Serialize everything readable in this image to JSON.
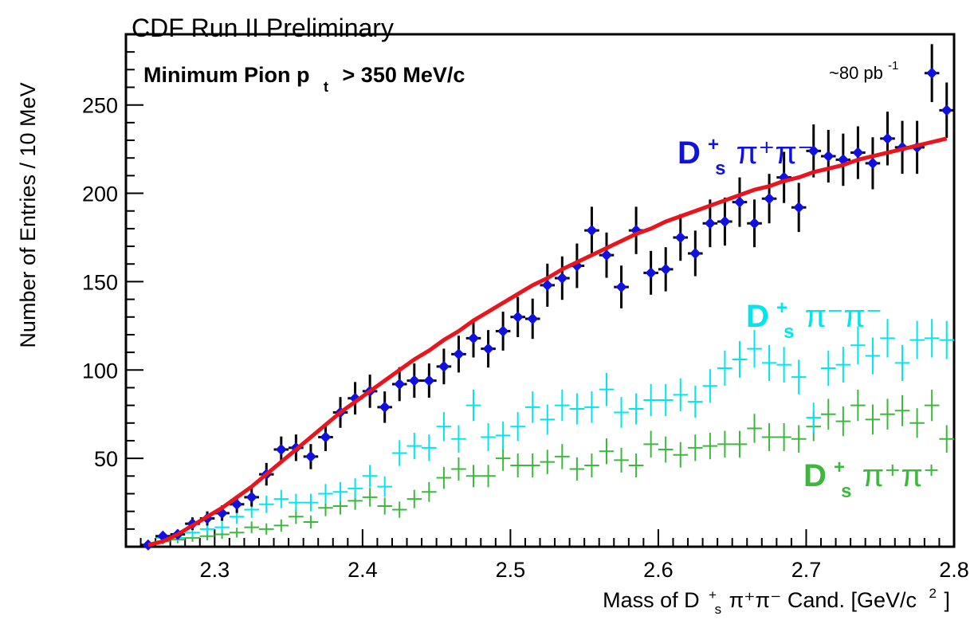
{
  "header": {
    "title": "CDF Run II Preliminary"
  },
  "chart_data": {
    "type": "scatter",
    "title": "Minimum Pion p",
    "title_sub": "t",
    "title_tail": "> 350 MeV/c",
    "lumi_main": "~80 pb",
    "lumi_sup": "-1",
    "ylabel": "Number of Entries / 10 MeV",
    "xlabel": {
      "part1": "Mass of D",
      "sub_s": "s",
      "sup_plus": "+",
      "part2": "π⁺π⁻ Cand. [GeV/c",
      "sup2": "2",
      "close": "]"
    },
    "xlim": [
      2.24,
      2.8
    ],
    "ylim": [
      0,
      290
    ],
    "xticks": [
      {
        "value": 2.3,
        "label": "2.3"
      },
      {
        "value": 2.4,
        "label": "2.4"
      },
      {
        "value": 2.5,
        "label": "2.5"
      },
      {
        "value": 2.6,
        "label": "2.6"
      },
      {
        "value": 2.7,
        "label": "2.7"
      },
      {
        "value": 2.8,
        "label": "2.8"
      }
    ],
    "yticks": [
      {
        "value": 50,
        "label": "50"
      },
      {
        "value": 100,
        "label": "100"
      },
      {
        "value": 150,
        "label": "150"
      },
      {
        "value": 200,
        "label": "200"
      },
      {
        "value": 250,
        "label": "250"
      }
    ],
    "bin_half_width": 0.005,
    "series": [
      {
        "label_main": "D",
        "label_sub": "s",
        "label_sup": "+",
        "label_tail": "π⁺π⁻",
        "color": "#1010e0",
        "marker": "diamond",
        "error_color": "#000000",
        "x": [
          2.255,
          2.265,
          2.275,
          2.285,
          2.295,
          2.305,
          2.315,
          2.325,
          2.335,
          2.345,
          2.355,
          2.365,
          2.375,
          2.385,
          2.395,
          2.405,
          2.415,
          2.425,
          2.435,
          2.445,
          2.455,
          2.465,
          2.475,
          2.485,
          2.495,
          2.505,
          2.515,
          2.525,
          2.535,
          2.545,
          2.555,
          2.565,
          2.575,
          2.585,
          2.595,
          2.605,
          2.615,
          2.625,
          2.635,
          2.645,
          2.655,
          2.665,
          2.675,
          2.685,
          2.695,
          2.705,
          2.715,
          2.725,
          2.735,
          2.745,
          2.755,
          2.765,
          2.775,
          2.785,
          2.795
        ],
        "y": [
          1,
          6,
          7,
          13,
          16,
          19,
          24,
          28,
          41,
          55,
          56,
          51,
          62,
          76,
          84,
          88,
          79,
          92,
          94,
          94,
          102,
          109,
          118,
          112,
          122,
          130,
          129,
          148,
          152,
          159,
          179,
          165,
          147,
          179,
          155,
          157,
          175,
          166,
          183,
          184,
          195,
          183,
          197,
          209,
          192,
          224,
          221,
          219,
          223,
          217,
          231,
          226,
          226,
          268,
          247
        ],
        "yerr": [
          1,
          2.5,
          2.7,
          3.6,
          4,
          4.4,
          4.9,
          5.3,
          6.4,
          7.4,
          7.5,
          7.1,
          7.9,
          8.7,
          9.2,
          9.4,
          8.9,
          9.6,
          9.7,
          9.7,
          10.1,
          10.4,
          10.9,
          10.6,
          11,
          11.4,
          11.4,
          12.2,
          12.3,
          12.6,
          13.4,
          12.8,
          12.1,
          13.4,
          12.4,
          12.5,
          13.2,
          12.9,
          13.5,
          13.6,
          14,
          13.5,
          14,
          14.5,
          13.9,
          15,
          14.9,
          14.8,
          14.9,
          14.7,
          15.2,
          15,
          15,
          16.4,
          15.7
        ]
      },
      {
        "label_main": "D",
        "label_sub": "s",
        "label_sup": "+",
        "label_tail": "π⁻π⁻",
        "color": "#00e5ee",
        "marker": "cross",
        "x": [
          2.255,
          2.265,
          2.275,
          2.285,
          2.295,
          2.305,
          2.315,
          2.325,
          2.335,
          2.345,
          2.355,
          2.365,
          2.375,
          2.385,
          2.395,
          2.405,
          2.415,
          2.425,
          2.435,
          2.445,
          2.455,
          2.465,
          2.475,
          2.485,
          2.495,
          2.505,
          2.515,
          2.525,
          2.535,
          2.545,
          2.555,
          2.565,
          2.575,
          2.585,
          2.595,
          2.605,
          2.615,
          2.625,
          2.635,
          2.645,
          2.655,
          2.665,
          2.675,
          2.685,
          2.695,
          2.705,
          2.715,
          2.725,
          2.735,
          2.745,
          2.755,
          2.765,
          2.775,
          2.785,
          2.795
        ],
        "y": [
          1,
          5,
          5,
          8,
          10,
          11,
          17,
          21,
          24,
          27,
          25,
          25,
          30,
          31,
          33,
          40,
          34,
          53,
          57,
          56,
          68,
          61,
          80,
          62,
          63,
          68,
          79,
          72,
          80,
          78,
          79,
          89,
          76,
          78,
          83,
          83,
          86,
          82,
          91,
          101,
          106,
          112,
          104,
          103,
          96,
          73,
          101,
          103,
          114,
          108,
          118,
          104,
          117,
          118,
          117
        ],
        "yerr": [
          1,
          2,
          2,
          2.8,
          3.2,
          3.3,
          4.1,
          4.6,
          4.9,
          5.2,
          5,
          5,
          5.5,
          5.6,
          5.7,
          6.3,
          5.8,
          7.3,
          7.5,
          7.5,
          8.2,
          7.8,
          8.9,
          7.9,
          7.9,
          8.2,
          8.9,
          8.5,
          8.9,
          8.8,
          8.9,
          9.4,
          8.7,
          8.8,
          9.1,
          9.1,
          9.3,
          9.1,
          9.5,
          10,
          10.3,
          10.6,
          10.2,
          10.1,
          9.8,
          8.5,
          10,
          10.1,
          10.7,
          10.4,
          10.9,
          10.2,
          10.8,
          10.9,
          10.8
        ]
      },
      {
        "label_main": "D",
        "label_sub": "s",
        "label_sup": "+",
        "label_tail": "π⁺π⁺",
        "color": "#3cb83c",
        "marker": "cross",
        "x": [
          2.255,
          2.265,
          2.275,
          2.285,
          2.295,
          2.305,
          2.315,
          2.325,
          2.335,
          2.345,
          2.355,
          2.365,
          2.375,
          2.385,
          2.395,
          2.405,
          2.415,
          2.425,
          2.435,
          2.445,
          2.455,
          2.465,
          2.475,
          2.485,
          2.495,
          2.505,
          2.515,
          2.525,
          2.535,
          2.545,
          2.555,
          2.565,
          2.575,
          2.585,
          2.595,
          2.605,
          2.615,
          2.625,
          2.635,
          2.645,
          2.655,
          2.665,
          2.675,
          2.685,
          2.695,
          2.705,
          2.715,
          2.725,
          2.735,
          2.745,
          2.755,
          2.765,
          2.775,
          2.785,
          2.795
        ],
        "y": [
          1,
          3,
          4,
          5,
          6,
          7,
          8,
          11,
          10,
          12,
          17,
          14,
          22,
          23,
          26,
          28,
          23,
          21,
          27,
          31,
          39,
          44,
          40,
          40,
          50,
          46,
          46,
          48,
          51,
          44,
          46,
          54,
          49,
          46,
          58,
          55,
          52,
          56,
          57,
          58,
          58,
          67,
          62,
          62,
          61,
          68,
          75,
          71,
          80,
          72,
          75,
          77,
          70,
          80,
          61
        ],
        "yerr": [
          1,
          1.7,
          2,
          2.2,
          2.4,
          2.6,
          2.8,
          3.3,
          3.2,
          3.5,
          4.1,
          3.7,
          4.7,
          4.8,
          5.1,
          5.3,
          4.8,
          4.6,
          5.2,
          5.6,
          6.2,
          6.6,
          6.3,
          6.3,
          7.1,
          6.8,
          6.8,
          6.9,
          7.1,
          6.6,
          6.8,
          7.3,
          7,
          6.8,
          7.6,
          7.4,
          7.2,
          7.5,
          7.5,
          7.6,
          7.6,
          8.2,
          7.9,
          7.9,
          7.8,
          8.2,
          8.7,
          8.4,
          8.9,
          8.5,
          8.7,
          8.8,
          8.4,
          8.9,
          7.8
        ]
      }
    ],
    "fit": {
      "color": "#e8141e",
      "x": [
        2.255,
        2.265,
        2.275,
        2.285,
        2.295,
        2.305,
        2.315,
        2.325,
        2.335,
        2.345,
        2.355,
        2.365,
        2.375,
        2.385,
        2.395,
        2.405,
        2.415,
        2.425,
        2.435,
        2.445,
        2.455,
        2.465,
        2.475,
        2.485,
        2.495,
        2.505,
        2.515,
        2.525,
        2.535,
        2.545,
        2.555,
        2.565,
        2.575,
        2.585,
        2.595,
        2.605,
        2.615,
        2.625,
        2.635,
        2.645,
        2.655,
        2.665,
        2.675,
        2.685,
        2.695,
        2.705,
        2.715,
        2.725,
        2.735,
        2.745,
        2.755,
        2.765,
        2.775,
        2.785,
        2.795
      ],
      "y": [
        1,
        3,
        7,
        12,
        17,
        22,
        28,
        34,
        41,
        48,
        55,
        62,
        69,
        76,
        82,
        88,
        94,
        100,
        106,
        111,
        117,
        122,
        128,
        133,
        138,
        143,
        148,
        152,
        157,
        161,
        165,
        169,
        173,
        177,
        180,
        184,
        187,
        190,
        193,
        196,
        199,
        202,
        204,
        207,
        209,
        212,
        214,
        216,
        219,
        221,
        223,
        225,
        227,
        229,
        231
      ]
    }
  }
}
